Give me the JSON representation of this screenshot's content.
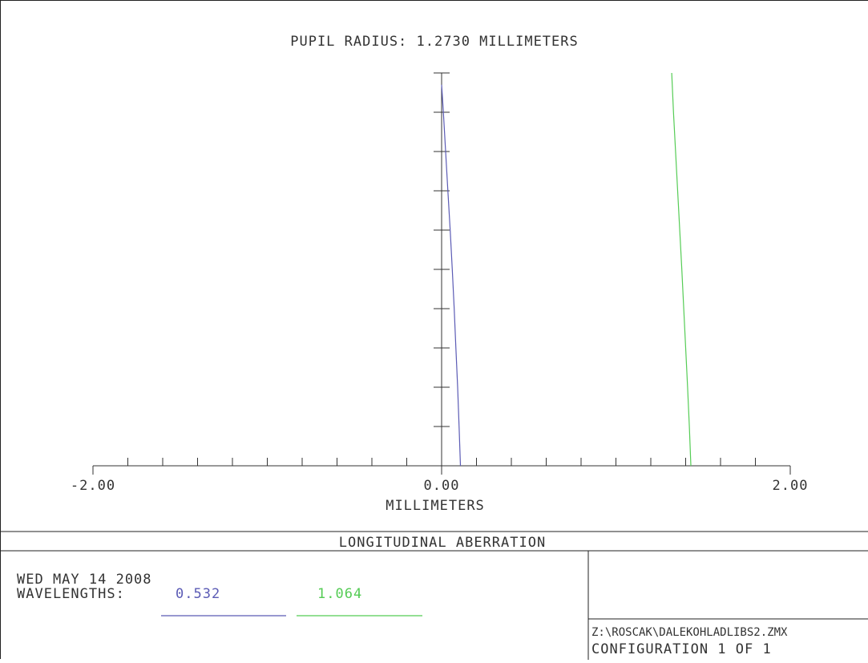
{
  "chart_data": {
    "type": "line",
    "title": "PUPIL RADIUS: 1.2730 MILLIMETERS",
    "xlabel": "MILLIMETERS",
    "ylabel": "",
    "xlim": [
      -2.0,
      2.0
    ],
    "ylim": [
      0,
      1
    ],
    "x_tick_labels": [
      "-2.00",
      "0.00",
      "2.00"
    ],
    "x_tick_values": [
      -2.0,
      0.0,
      2.0
    ],
    "series": [
      {
        "name": "0.532",
        "color": "#5b5bb5",
        "points": [
          [
            0.108,
            0.0
          ],
          [
            0.1,
            0.1
          ],
          [
            0.092,
            0.2
          ],
          [
            0.082,
            0.3
          ],
          [
            0.072,
            0.4
          ],
          [
            0.061,
            0.5
          ],
          [
            0.049,
            0.6
          ],
          [
            0.036,
            0.7
          ],
          [
            0.023,
            0.8
          ],
          [
            0.01,
            0.9
          ],
          [
            0.0,
            0.97
          ]
        ]
      },
      {
        "name": "1.064",
        "color": "#55cc55",
        "points": [
          [
            1.43,
            0.0
          ],
          [
            1.421,
            0.1
          ],
          [
            1.411,
            0.2
          ],
          [
            1.4,
            0.3
          ],
          [
            1.389,
            0.4
          ],
          [
            1.378,
            0.5
          ],
          [
            1.366,
            0.6
          ],
          [
            1.354,
            0.7
          ],
          [
            1.342,
            0.8
          ],
          [
            1.33,
            0.9
          ],
          [
            1.32,
            1.0
          ]
        ]
      }
    ],
    "grid": false,
    "legend": "bottom-left"
  },
  "footer": {
    "title": "LONGITUDINAL ABERRATION",
    "date": "WED MAY 14 2008",
    "wavelengths_label": "WAVELENGTHS:",
    "wavelengths": [
      {
        "value": "0.532",
        "color": "#5b5bb5"
      },
      {
        "value": "1.064",
        "color": "#55cc55"
      }
    ],
    "file_path": "Z:\\ROSCAK\\DALEKOHLADLIBS2.ZMX",
    "configuration": "CONFIGURATION 1 OF 1"
  },
  "colors": {
    "axis": "#333333",
    "frame": "#222222"
  }
}
